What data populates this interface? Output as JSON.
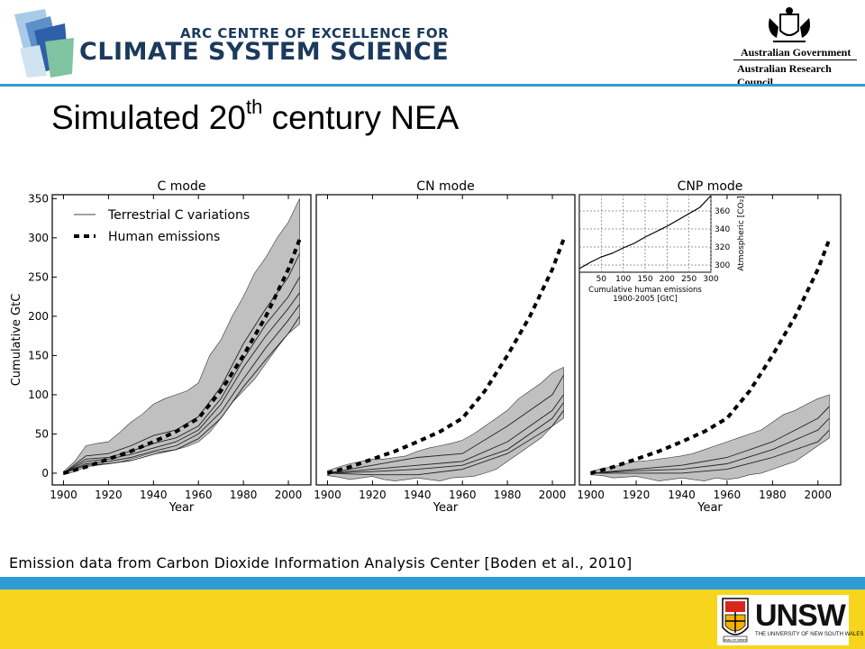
{
  "header": {
    "arc_line1": "ARC CENTRE OF EXCELLENCE FOR",
    "arc_line2": "CLIMATE SYSTEM SCIENCE",
    "gov_line1": "Australian Government",
    "gov_line2": "Australian Research Council"
  },
  "title": {
    "main": "Simulated 20",
    "sup": "th",
    "rest": " century NEA"
  },
  "caption": "Emission data from Carbon Dioxide Information Analysis Center [Boden et al., 2010]",
  "footer": {
    "logo_text": "UNSW",
    "logo_subtext": "THE UNIVERSITY OF NEW SOUTH WALES",
    "logo_shield_text": "MANU ET MENTE"
  },
  "colors": {
    "header_blue": "#2e9bd6",
    "footer_yellow": "#f7d51d",
    "envelope_fill": "#c0c0c0",
    "arc_navy": "#1b3a5c"
  },
  "chart_data": [
    {
      "type": "area",
      "title": "C mode",
      "xlabel": "Year",
      "ylabel": "Cumulative GtC",
      "xlim": [
        1895,
        2010
      ],
      "ylim": [
        -15,
        355
      ],
      "xticks": [
        1900,
        1920,
        1940,
        1960,
        1980,
        2000
      ],
      "yticks": [
        0,
        50,
        100,
        150,
        200,
        250,
        300,
        350
      ],
      "legend": {
        "placement": "top-left",
        "entries": [
          "Terrestrial C variations",
          "Human emissions"
        ]
      },
      "envelope": {
        "x": [
          1900,
          1905,
          1910,
          1915,
          1920,
          1925,
          1930,
          1935,
          1940,
          1945,
          1950,
          1955,
          1960,
          1965,
          1970,
          1975,
          1980,
          1985,
          1990,
          1995,
          2000,
          2005
        ],
        "upper": [
          2,
          15,
          35,
          38,
          40,
          52,
          65,
          75,
          88,
          95,
          100,
          105,
          115,
          150,
          170,
          200,
          225,
          255,
          275,
          300,
          320,
          350
        ],
        "lower": [
          -2,
          2,
          8,
          10,
          12,
          14,
          18,
          22,
          26,
          28,
          30,
          34,
          40,
          52,
          70,
          90,
          105,
          120,
          140,
          160,
          178,
          190
        ]
      },
      "series": [
        {
          "name": "Terrestrial C variations",
          "x": [
            1900,
            1910,
            1920,
            1930,
            1940,
            1950,
            1960,
            1970,
            1980,
            1990,
            2000,
            2005
          ],
          "values": [
            0,
            22,
            25,
            35,
            48,
            55,
            72,
            110,
            165,
            210,
            250,
            280
          ]
        },
        {
          "name": "Terrestrial C variations",
          "x": [
            1900,
            1910,
            1920,
            1930,
            1940,
            1950,
            1960,
            1970,
            1980,
            1990,
            2000,
            2005
          ],
          "values": [
            0,
            18,
            20,
            28,
            38,
            45,
            60,
            95,
            145,
            190,
            225,
            250
          ]
        },
        {
          "name": "Terrestrial C variations",
          "x": [
            1900,
            1910,
            1920,
            1930,
            1940,
            1950,
            1960,
            1970,
            1980,
            1990,
            2000,
            2005
          ],
          "values": [
            0,
            15,
            18,
            24,
            32,
            40,
            55,
            88,
            135,
            175,
            210,
            230
          ]
        },
        {
          "name": "Terrestrial C variations",
          "x": [
            1900,
            1910,
            1920,
            1930,
            1940,
            1950,
            1960,
            1970,
            1980,
            1990,
            2000,
            2005
          ],
          "values": [
            0,
            12,
            15,
            20,
            28,
            35,
            50,
            78,
            120,
            160,
            195,
            215
          ]
        },
        {
          "name": "Terrestrial C variations",
          "x": [
            1900,
            1910,
            1920,
            1930,
            1940,
            1950,
            1960,
            1970,
            1980,
            1990,
            2000,
            2005
          ],
          "values": [
            0,
            10,
            12,
            16,
            24,
            30,
            44,
            70,
            110,
            145,
            178,
            200
          ]
        }
      ],
      "human_emissions": {
        "x": [
          1900,
          1910,
          1920,
          1930,
          1940,
          1950,
          1960,
          1970,
          1980,
          1990,
          2000,
          2005
        ],
        "values": [
          0,
          8,
          18,
          28,
          40,
          53,
          70,
          105,
          150,
          200,
          260,
          298
        ]
      }
    },
    {
      "type": "area",
      "title": "CN mode",
      "xlabel": "Year",
      "xlim": [
        1895,
        2010
      ],
      "ylim": [
        -15,
        355
      ],
      "xticks": [
        1900,
        1920,
        1940,
        1960,
        1980,
        2000
      ],
      "envelope": {
        "x": [
          1900,
          1905,
          1910,
          1915,
          1920,
          1925,
          1930,
          1935,
          1940,
          1945,
          1950,
          1955,
          1960,
          1965,
          1970,
          1975,
          1980,
          1985,
          1990,
          1995,
          2000,
          2005
        ],
        "upper": [
          3,
          8,
          12,
          15,
          18,
          18,
          20,
          22,
          28,
          32,
          35,
          38,
          42,
          50,
          60,
          70,
          80,
          95,
          105,
          115,
          128,
          135
        ],
        "lower": [
          -3,
          -5,
          -8,
          -6,
          -4,
          -8,
          -10,
          -8,
          -6,
          -8,
          -10,
          -6,
          -5,
          -4,
          0,
          5,
          15,
          25,
          35,
          45,
          60,
          70
        ]
      },
      "series": [
        {
          "name": "Terrestrial C variations",
          "x": [
            1900,
            1920,
            1940,
            1960,
            1980,
            2000,
            2005
          ],
          "values": [
            0,
            10,
            20,
            25,
            60,
            100,
            125
          ]
        },
        {
          "name": "Terrestrial C variations",
          "x": [
            1900,
            1920,
            1940,
            1960,
            1980,
            2000,
            2005
          ],
          "values": [
            0,
            5,
            10,
            15,
            40,
            80,
            100
          ]
        },
        {
          "name": "Terrestrial C variations",
          "x": [
            1900,
            1920,
            1940,
            1960,
            1980,
            2000,
            2005
          ],
          "values": [
            0,
            2,
            5,
            10,
            30,
            70,
            90
          ]
        },
        {
          "name": "Terrestrial C variations",
          "x": [
            1900,
            1920,
            1940,
            1960,
            1980,
            2000,
            2005
          ],
          "values": [
            0,
            -2,
            -2,
            5,
            25,
            60,
            80
          ]
        }
      ],
      "human_emissions": {
        "x": [
          1900,
          1910,
          1920,
          1930,
          1940,
          1950,
          1960,
          1970,
          1980,
          1990,
          2000,
          2005
        ],
        "values": [
          0,
          8,
          18,
          28,
          40,
          53,
          70,
          105,
          150,
          200,
          260,
          298
        ]
      }
    },
    {
      "type": "area",
      "title": "CNP mode",
      "xlabel": "Year",
      "xlim": [
        1895,
        2010
      ],
      "ylim": [
        -15,
        355
      ],
      "xticks": [
        1900,
        1920,
        1940,
        1960,
        1980,
        2000
      ],
      "envelope": {
        "x": [
          1900,
          1905,
          1910,
          1915,
          1920,
          1925,
          1930,
          1935,
          1940,
          1945,
          1950,
          1955,
          1960,
          1965,
          1970,
          1975,
          1980,
          1985,
          1990,
          1995,
          2000,
          2005
        ],
        "upper": [
          2,
          6,
          8,
          12,
          15,
          16,
          18,
          20,
          22,
          25,
          30,
          35,
          40,
          45,
          50,
          55,
          65,
          75,
          80,
          88,
          95,
          100
        ],
        "lower": [
          -2,
          -3,
          -6,
          -5,
          -4,
          -7,
          -10,
          -8,
          -6,
          -8,
          -10,
          -6,
          -8,
          -6,
          -2,
          0,
          5,
          10,
          15,
          25,
          35,
          45
        ]
      },
      "series": [
        {
          "name": "Terrestrial C variations",
          "x": [
            1900,
            1920,
            1940,
            1960,
            1980,
            2000,
            2005
          ],
          "values": [
            0,
            5,
            10,
            20,
            40,
            70,
            85
          ]
        },
        {
          "name": "Terrestrial C variations",
          "x": [
            1900,
            1920,
            1940,
            1960,
            1980,
            2000,
            2005
          ],
          "values": [
            0,
            3,
            5,
            12,
            30,
            55,
            70
          ]
        },
        {
          "name": "Terrestrial C variations",
          "x": [
            1900,
            1920,
            1940,
            1960,
            1980,
            2000,
            2005
          ],
          "values": [
            0,
            0,
            0,
            5,
            20,
            40,
            55
          ]
        }
      ],
      "human_emissions": {
        "x": [
          1900,
          1910,
          1920,
          1930,
          1940,
          1950,
          1960,
          1970,
          1980,
          1990,
          2000,
          2005
        ],
        "values": [
          0,
          8,
          18,
          28,
          40,
          53,
          70,
          105,
          150,
          200,
          260,
          298
        ]
      }
    },
    {
      "type": "line",
      "title": "",
      "xlabel": "Cumulative human emissions 1900-2005 [GtC]",
      "ylabel": "Atmospheric [CO₂]",
      "xlim": [
        0,
        300
      ],
      "ylim": [
        292,
        378
      ],
      "xticks": [
        50,
        100,
        150,
        200,
        250,
        300
      ],
      "yticks": [
        300,
        320,
        340,
        360
      ],
      "grid": true,
      "x": [
        0,
        25,
        50,
        75,
        100,
        125,
        150,
        175,
        200,
        225,
        250,
        275,
        300
      ],
      "values": [
        296,
        303,
        309,
        313,
        319,
        324,
        331,
        337,
        343,
        350,
        357,
        364,
        377
      ]
    }
  ]
}
